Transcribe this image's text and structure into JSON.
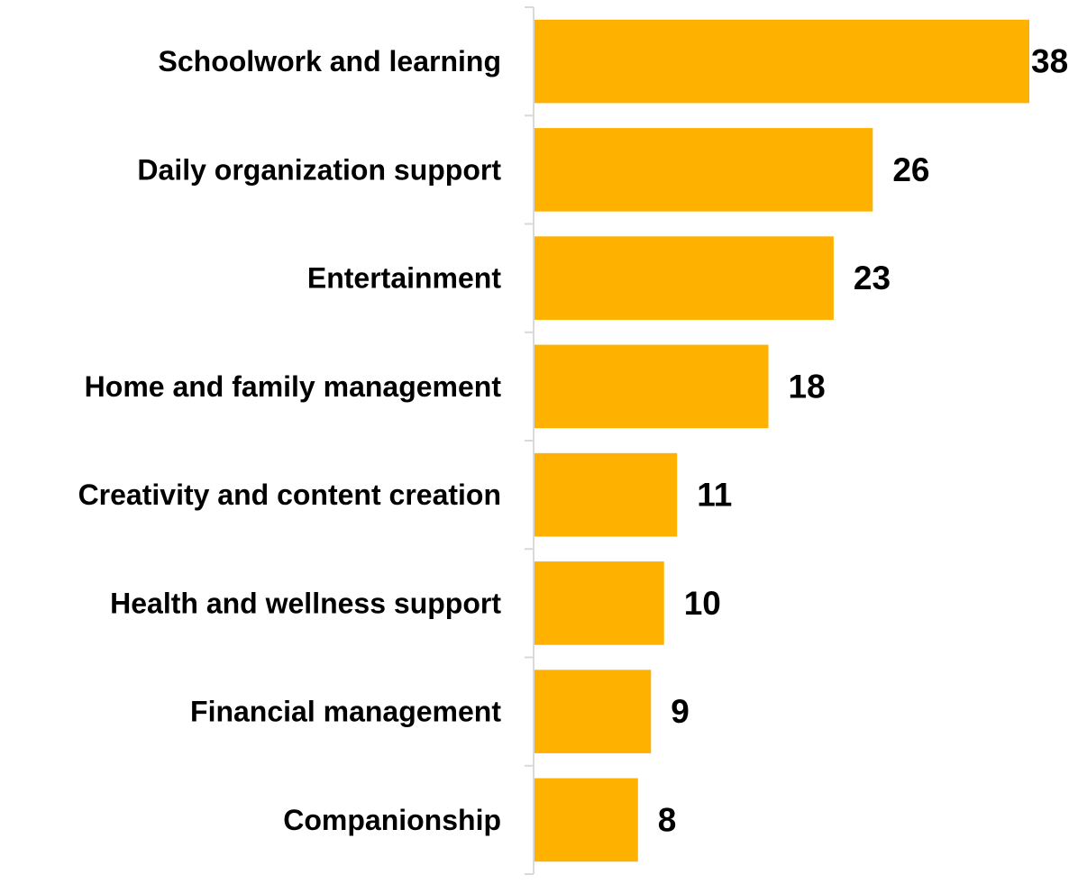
{
  "chart_data": {
    "type": "bar",
    "orientation": "horizontal",
    "categories": [
      "Schoolwork and learning",
      "Daily organization support",
      "Entertainment",
      "Home and family management",
      "Creativity and content creation",
      "Health and wellness support",
      "Financial management",
      "Companionship"
    ],
    "values": [
      38,
      26,
      23,
      18,
      11,
      10,
      9,
      8
    ],
    "data_labels": [
      "38",
      "26",
      "23",
      "18",
      "11",
      "10",
      "9",
      "8"
    ],
    "xlim": [
      0,
      38
    ],
    "grid": false,
    "legend": "none",
    "bar_color": "#FFB100",
    "axis_color": "#D9D9D9"
  }
}
